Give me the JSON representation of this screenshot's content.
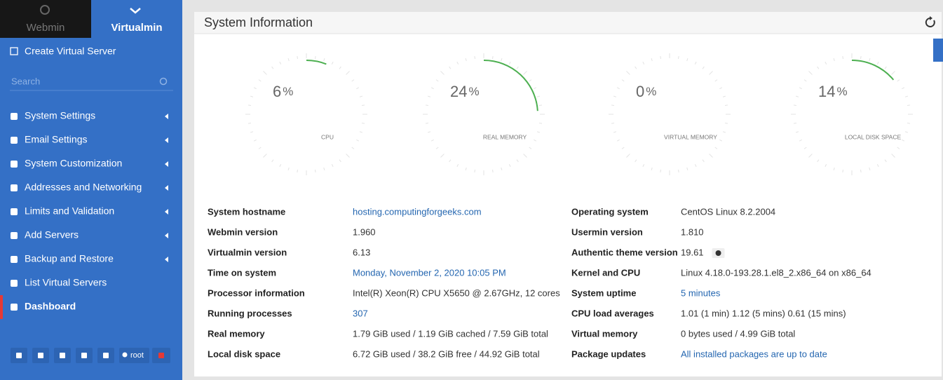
{
  "sidebar": {
    "tabs": [
      "Webmin",
      "Virtualmin"
    ],
    "create": "Create Virtual Server",
    "search_placeholder": "Search",
    "menu": [
      "System Settings",
      "Email Settings",
      "System Customization",
      "Addresses and Networking",
      "Limits and Validation",
      "Add Servers",
      "Backup and Restore",
      "List Virtual Servers",
      "Dashboard"
    ],
    "user": "root"
  },
  "panel": {
    "title": "System Information",
    "gauges": [
      {
        "value": 6,
        "unit": "%",
        "label": "CPU"
      },
      {
        "value": 24,
        "unit": "%",
        "label": "REAL MEMORY"
      },
      {
        "value": 0,
        "unit": "%",
        "label": "VIRTUAL MEMORY"
      },
      {
        "value": 14,
        "unit": "%",
        "label": "LOCAL DISK SPACE"
      }
    ],
    "info": {
      "left": [
        {
          "label": "System hostname",
          "value": "hosting.computingforgeeks.com",
          "link": true
        },
        {
          "label": "Webmin version",
          "value": "1.960",
          "link": false
        },
        {
          "label": "Virtualmin version",
          "value": "6.13",
          "link": false
        },
        {
          "label": "Time on system",
          "value": "Monday, November 2, 2020 10:05 PM",
          "link": true
        },
        {
          "label": "Processor information",
          "value": "Intel(R) Xeon(R) CPU X5650 @ 2.67GHz, 12 cores",
          "link": false
        },
        {
          "label": "Running processes",
          "value": "307",
          "link": true
        },
        {
          "label": "Real memory",
          "value": "1.79 GiB used / 1.19 GiB cached / 7.59 GiB total",
          "link": false
        },
        {
          "label": "Local disk space",
          "value": "6.72 GiB used / 38.2 GiB free / 44.92 GiB total",
          "link": false
        }
      ],
      "right": [
        {
          "label": "Operating system",
          "value": "CentOS Linux 8.2.2004",
          "link": false
        },
        {
          "label": "Usermin version",
          "value": "1.810",
          "link": false
        },
        {
          "label": "Authentic theme version",
          "value": "19.61",
          "link": false
        },
        {
          "label": "Kernel and CPU",
          "value": "Linux 4.18.0-193.28.1.el8_2.x86_64 on x86_64",
          "link": false
        },
        {
          "label": "System uptime",
          "value": "5 minutes",
          "link": true
        },
        {
          "label": "CPU load averages",
          "value": "1.01 (1 min) 1.12 (5 mins) 0.61 (15 mins)",
          "link": false
        },
        {
          "label": "Virtual memory",
          "value": "0 bytes used / 4.99 GiB total",
          "link": false
        },
        {
          "label": "Package updates",
          "value": "All installed packages are up to date",
          "link": true
        }
      ]
    }
  }
}
